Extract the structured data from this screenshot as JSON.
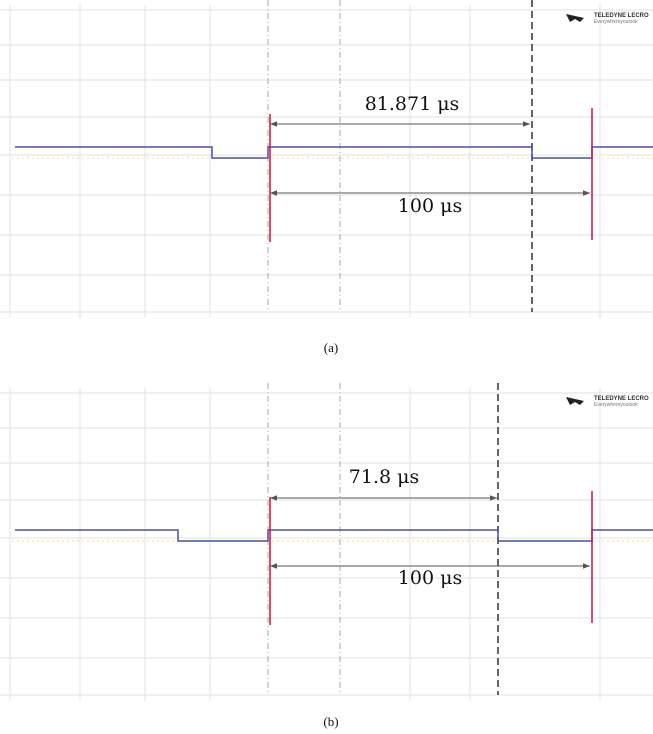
{
  "panels": [
    {
      "label": "(a)",
      "logo_brand": "TELEDYNE LECRO",
      "logo_tagline": "Everywhereyoulook",
      "measurements": [
        "81.871 μs",
        "100 μs"
      ]
    },
    {
      "label": "(b)",
      "logo_brand": "TELEDYNE LECRO",
      "logo_tagline": "Everywhereyoulook",
      "measurements": [
        "71.8 μs",
        "100 μs"
      ]
    }
  ]
}
